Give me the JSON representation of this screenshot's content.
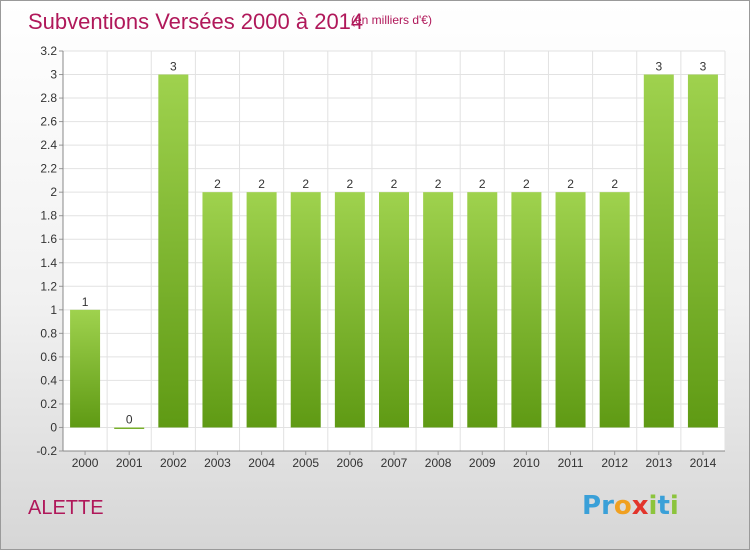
{
  "header": {
    "title": "Subventions Versées 2000 à 2014",
    "subtitle": "(en milliers d'€)"
  },
  "footer": {
    "commune": "ALETTE",
    "brand": "Proxiti",
    "brand_letters": [
      "P",
      "r",
      "o",
      "x",
      "i",
      "t",
      "i"
    ],
    "brand_colors": [
      "#3aa0d8",
      "#3aa0d8",
      "#f0a020",
      "#e2342b",
      "#8cc43c",
      "#3aa0d8",
      "#8cc43c"
    ]
  },
  "chart_data": {
    "type": "bar",
    "categories": [
      "2000",
      "2001",
      "2002",
      "2003",
      "2004",
      "2005",
      "2006",
      "2007",
      "2008",
      "2009",
      "2010",
      "2011",
      "2012",
      "2013",
      "2014"
    ],
    "values": [
      1,
      0,
      3,
      2,
      2,
      2,
      2,
      2,
      2,
      2,
      2,
      2,
      2,
      3,
      3
    ],
    "data_labels": [
      "1",
      "0",
      "3",
      "2",
      "2",
      "2",
      "2",
      "2",
      "2",
      "2",
      "2",
      "2",
      "2",
      "3",
      "3"
    ],
    "ylim": [
      -0.2,
      3.2
    ],
    "yticks": [
      -0.2,
      0,
      0.2,
      0.4,
      0.6,
      0.8,
      1,
      1.2,
      1.4,
      1.6,
      1.8,
      2,
      2.2,
      2.4,
      2.6,
      2.8,
      3,
      3.2
    ],
    "ytick_labels": [
      "-0.2",
      "0",
      "0.2",
      "0.4",
      "0.6",
      "0.8",
      "1",
      "1.2",
      "1.4",
      "1.6",
      "1.8",
      "2",
      "2.2",
      "2.4",
      "2.6",
      "2.8",
      "3",
      "3.2"
    ],
    "grid": true,
    "colors": {
      "bar_top": "#9fd24e",
      "bar_bottom": "#5f9a14",
      "text": "#333333",
      "grid": "#e2e2e2"
    }
  }
}
